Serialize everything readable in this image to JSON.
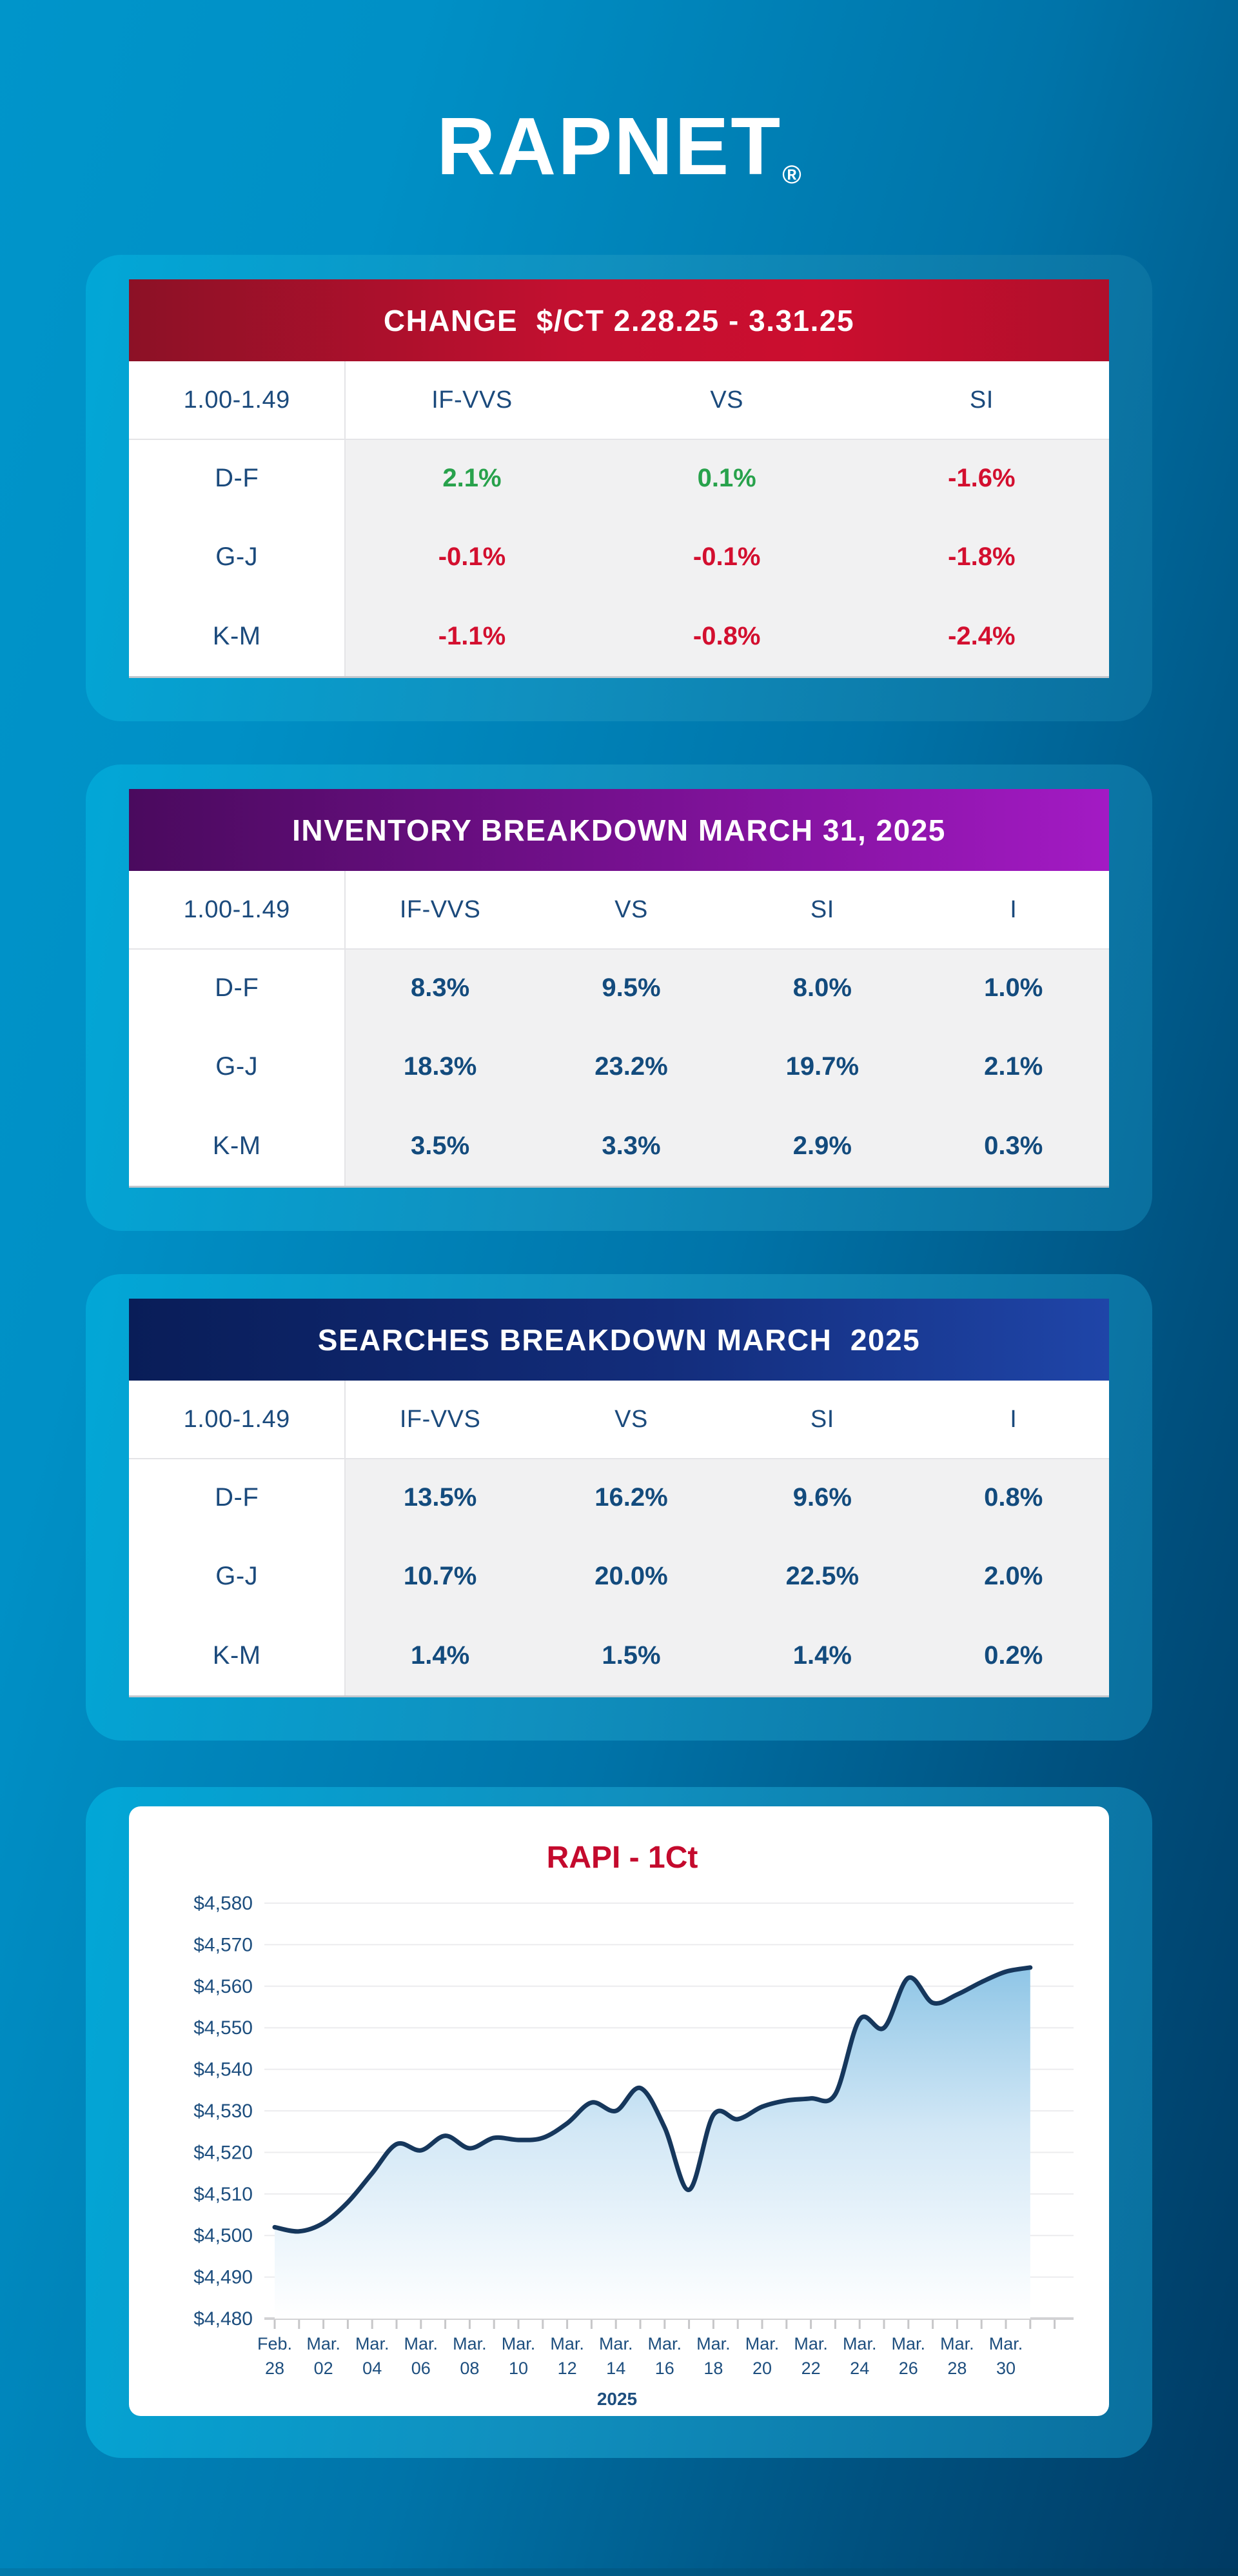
{
  "logo": {
    "text": "RAPNET",
    "registered": "®"
  },
  "colors": {
    "page_bg_start": "#0095ca",
    "page_bg_end": "#003e69",
    "card_start": "#02a7d7",
    "card_end": "#0a6f9e",
    "navy_text": "#1b4a7c",
    "positive": "#28a24c",
    "negative": "#d30f2f",
    "table_value_bg": "#f1f1f2",
    "header_red": "#c31030",
    "header_purple": "#a31ac4",
    "header_navy": "#1f45a8"
  },
  "tables": [
    {
      "title": "CHANGE  $/CT 2.28.25 - 3.31.25",
      "header_theme": "red",
      "columns": [
        "1.00-1.49",
        "IF-VVS",
        "VS",
        "SI"
      ],
      "rows": [
        {
          "label": "D-F",
          "values": [
            {
              "text": "2.1%",
              "tone": "positive"
            },
            {
              "text": "0.1%",
              "tone": "positive"
            },
            {
              "text": "-1.6%",
              "tone": "negative"
            }
          ]
        },
        {
          "label": "G-J",
          "values": [
            {
              "text": "-0.1%",
              "tone": "negative"
            },
            {
              "text": "-0.1%",
              "tone": "negative"
            },
            {
              "text": "-1.8%",
              "tone": "negative"
            }
          ]
        },
        {
          "label": "K-M",
          "values": [
            {
              "text": "-1.1%",
              "tone": "negative"
            },
            {
              "text": "-0.8%",
              "tone": "negative"
            },
            {
              "text": "-2.4%",
              "tone": "negative"
            }
          ]
        }
      ]
    },
    {
      "title": "INVENTORY BREAKDOWN MARCH 31, 2025",
      "header_theme": "purple",
      "columns": [
        "1.00-1.49",
        "IF-VVS",
        "VS",
        "SI",
        "I"
      ],
      "rows": [
        {
          "label": "D-F",
          "values": [
            {
              "text": "8.3%",
              "tone": "neutral"
            },
            {
              "text": "9.5%",
              "tone": "neutral"
            },
            {
              "text": "8.0%",
              "tone": "neutral"
            },
            {
              "text": "1.0%",
              "tone": "neutral"
            }
          ]
        },
        {
          "label": "G-J",
          "values": [
            {
              "text": "18.3%",
              "tone": "neutral"
            },
            {
              "text": "23.2%",
              "tone": "neutral"
            },
            {
              "text": "19.7%",
              "tone": "neutral"
            },
            {
              "text": "2.1%",
              "tone": "neutral"
            }
          ]
        },
        {
          "label": "K-M",
          "values": [
            {
              "text": "3.5%",
              "tone": "neutral"
            },
            {
              "text": "3.3%",
              "tone": "neutral"
            },
            {
              "text": "2.9%",
              "tone": "neutral"
            },
            {
              "text": "0.3%",
              "tone": "neutral"
            }
          ]
        }
      ]
    },
    {
      "title": "SEARCHES BREAKDOWN MARCH  2025",
      "header_theme": "navy",
      "columns": [
        "1.00-1.49",
        "IF-VVS",
        "VS",
        "SI",
        "I"
      ],
      "rows": [
        {
          "label": "D-F",
          "values": [
            {
              "text": "13.5%",
              "tone": "neutral"
            },
            {
              "text": "16.2%",
              "tone": "neutral"
            },
            {
              "text": "9.6%",
              "tone": "neutral"
            },
            {
              "text": "0.8%",
              "tone": "neutral"
            }
          ]
        },
        {
          "label": "G-J",
          "values": [
            {
              "text": "10.7%",
              "tone": "neutral"
            },
            {
              "text": "20.0%",
              "tone": "neutral"
            },
            {
              "text": "22.5%",
              "tone": "neutral"
            },
            {
              "text": "2.0%",
              "tone": "neutral"
            }
          ]
        },
        {
          "label": "K-M",
          "values": [
            {
              "text": "1.4%",
              "tone": "neutral"
            },
            {
              "text": "1.5%",
              "tone": "neutral"
            },
            {
              "text": "1.4%",
              "tone": "neutral"
            },
            {
              "text": "0.2%",
              "tone": "neutral"
            }
          ]
        }
      ]
    }
  ],
  "chart_data": {
    "type": "area",
    "title": "RAPI  - 1Ct",
    "title_color": "#c40a2d",
    "line_color": "#16375c",
    "area_top_color": "#74b8e0",
    "grid": true,
    "legend": "none",
    "ylim": [
      4480,
      4580
    ],
    "y_tick_labels": [
      "$4,580",
      "$4,570",
      "$4,560",
      "$4,550",
      "$4,540",
      "$4,530",
      "$4,520",
      "$4,510",
      "$4,500",
      "$4,490",
      "$4,480"
    ],
    "x": [
      "Feb 28",
      "Mar 01",
      "Mar 02",
      "Mar 03",
      "Mar 04",
      "Mar 05",
      "Mar 06",
      "Mar 07",
      "Mar 08",
      "Mar 09",
      "Mar 10",
      "Mar 11",
      "Mar 12",
      "Mar 13",
      "Mar 14",
      "Mar 15",
      "Mar 16",
      "Mar 17",
      "Mar 18",
      "Mar 19",
      "Mar 20",
      "Mar 21",
      "Mar 22",
      "Mar 23",
      "Mar 24",
      "Mar 25",
      "Mar 26",
      "Mar 27",
      "Mar 28",
      "Mar 29",
      "Mar 30",
      "Mar 31"
    ],
    "values": [
      4502,
      4501,
      4503,
      4508,
      4515,
      4522,
      4520.5,
      4524,
      4521,
      4523.5,
      4523,
      4523.5,
      4527,
      4532,
      4530,
      4535.5,
      4526,
      4511,
      4529,
      4528,
      4531,
      4532.5,
      4533,
      4534,
      4552,
      4550,
      4562,
      4556,
      4558,
      4561,
      4563.5,
      4564.5
    ],
    "x_tick_labels": [
      [
        "Feb.",
        "28"
      ],
      [
        "Mar.",
        "02"
      ],
      [
        "Mar.",
        "04"
      ],
      [
        "Mar.",
        "06"
      ],
      [
        "Mar.",
        "08"
      ],
      [
        "Mar.",
        "10"
      ],
      [
        "Mar.",
        "12"
      ],
      [
        "Mar.",
        "14"
      ],
      [
        "Mar.",
        "16"
      ],
      [
        "Mar.",
        "18"
      ],
      [
        "Mar.",
        "20"
      ],
      [
        "Mar.",
        "22"
      ],
      [
        "Mar.",
        "24"
      ],
      [
        "Mar.",
        "26"
      ],
      [
        "Mar.",
        "28"
      ],
      [
        "Mar.",
        "30"
      ]
    ],
    "year_label": "2025"
  }
}
